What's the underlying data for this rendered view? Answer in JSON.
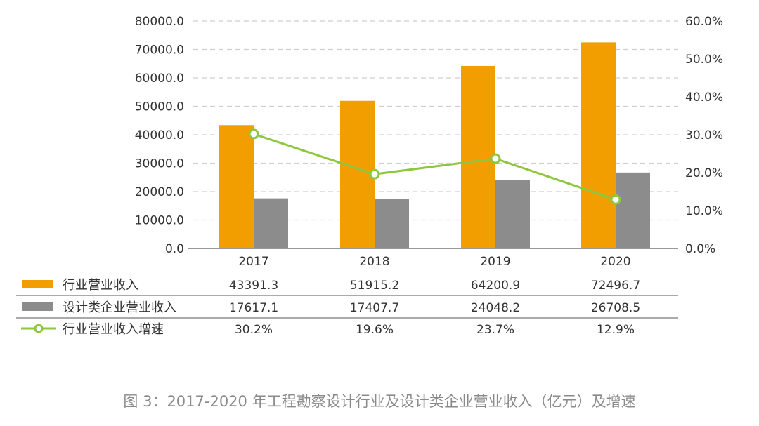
{
  "chart_data": {
    "type": "bar",
    "categories": [
      "2017",
      "2018",
      "2019",
      "2020"
    ],
    "series": [
      {
        "name": "行业营业收入",
        "kind": "bar",
        "axis": "left",
        "color": "#F29E00",
        "values": [
          43391.3,
          51915.2,
          64200.9,
          72496.7
        ],
        "labels": [
          "43391.3",
          "51915.2",
          "64200.9",
          "72496.7"
        ]
      },
      {
        "name": "设计类企业营业收入",
        "kind": "bar",
        "axis": "left",
        "color": "#8C8C8C",
        "values": [
          17617.1,
          17407.7,
          24048.2,
          26708.5
        ],
        "labels": [
          "17617.1",
          "17407.7",
          "24048.2",
          "26708.5"
        ]
      },
      {
        "name": "行业营业收入增速",
        "kind": "line",
        "axis": "right",
        "color": "#8DC63F",
        "values": [
          30.2,
          19.6,
          23.7,
          12.9
        ],
        "labels": [
          "30.2%",
          "19.6%",
          "23.7%",
          "12.9%"
        ]
      }
    ],
    "y_left": {
      "range": [
        0,
        80000
      ],
      "ticks": [
        "0.0",
        "10000.0",
        "20000.0",
        "30000.0",
        "40000.0",
        "50000.0",
        "60000.0",
        "70000.0",
        "80000.0"
      ]
    },
    "y_right": {
      "range": [
        0,
        60
      ],
      "ticks": [
        "0.0%",
        "10.0%",
        "20.0%",
        "30.0%",
        "40.0%",
        "50.0%",
        "60.0%"
      ]
    },
    "grid": "horizontal dashed",
    "legend": "data table below chart",
    "caption": "图 3：2017-2020 年工程勘察设计行业及设计类企业营业收入（亿元）及增速"
  }
}
